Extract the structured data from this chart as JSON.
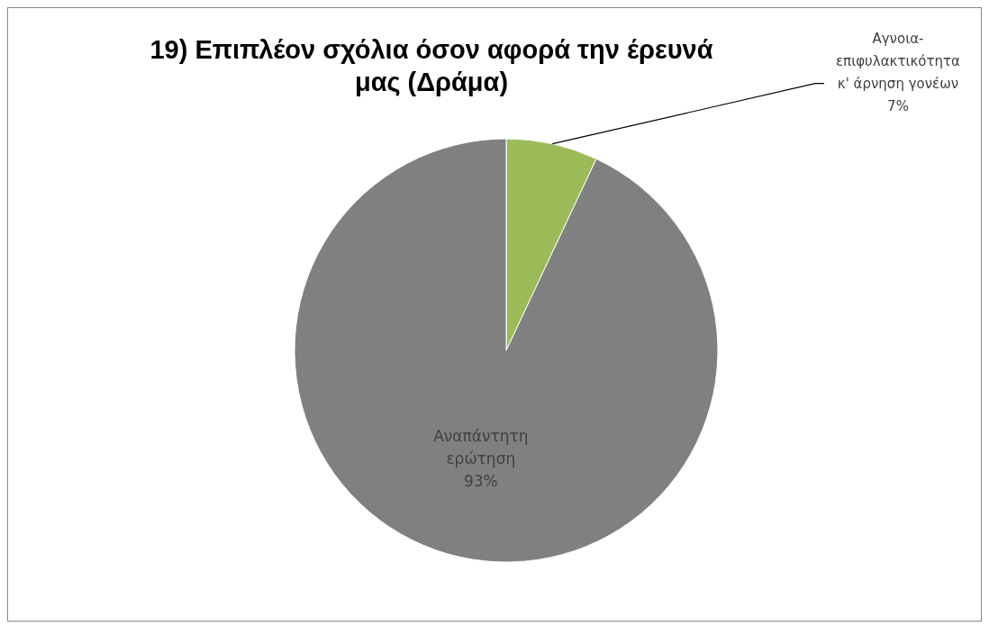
{
  "chart_data": {
    "type": "pie",
    "title": "19) Επιπλέον σχόλια όσον αφορά την έρευνά μας (Δράμα)",
    "categories": [
      "Αγνοια-επιφυλακτικότητα κ' άρνηση γονέων",
      "Αναπάντητη ερώτηση"
    ],
    "values": [
      7,
      93
    ],
    "value_labels": [
      "7%",
      "93%"
    ],
    "colors": [
      "#9bbb59",
      "#808080"
    ],
    "legend": false
  }
}
